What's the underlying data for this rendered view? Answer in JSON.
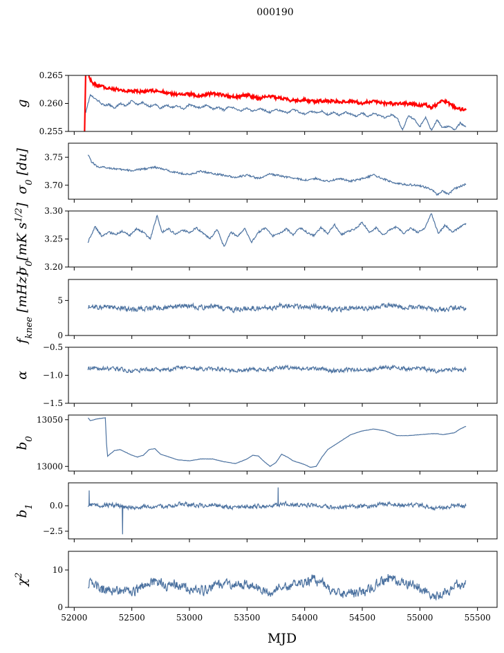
{
  "figure_title": "000190",
  "chart_data": [
    {
      "type": "line",
      "id": "g",
      "ylabel": "g",
      "ylabel_html": "g",
      "ylim": [
        0.255,
        0.265
      ],
      "yticks": [
        0.255,
        0.26,
        0.265
      ],
      "ytick_labels": [
        "0.255",
        "0.260",
        "0.265"
      ],
      "series": [
        {
          "name": "g",
          "color": "#4c72a0",
          "x": [
            52100,
            52140,
            52180,
            52220,
            52260,
            52300,
            52350,
            52400,
            52450,
            52500,
            52550,
            52600,
            52650,
            52700,
            52750,
            52800,
            52850,
            52900,
            52950,
            53000,
            53050,
            53100,
            53150,
            53200,
            53250,
            53300,
            53350,
            53400,
            53450,
            53500,
            53550,
            53600,
            53650,
            53700,
            53750,
            53800,
            53850,
            53900,
            53950,
            54000,
            54050,
            54100,
            54150,
            54200,
            54250,
            54300,
            54350,
            54400,
            54450,
            54500,
            54550,
            54600,
            54650,
            54700,
            54750,
            54800,
            54850,
            54900,
            54950,
            55000,
            55050,
            55100,
            55150,
            55200,
            55250,
            55300,
            55350,
            55400
          ],
          "y": [
            0.2585,
            0.2615,
            0.2608,
            0.2603,
            0.2596,
            0.2598,
            0.2592,
            0.26,
            0.2595,
            0.2605,
            0.2597,
            0.2602,
            0.2594,
            0.2599,
            0.2591,
            0.2597,
            0.2593,
            0.2596,
            0.259,
            0.2598,
            0.2594,
            0.2592,
            0.2597,
            0.259,
            0.2593,
            0.2588,
            0.2595,
            0.259,
            0.2587,
            0.2592,
            0.2585,
            0.2591,
            0.2588,
            0.2584,
            0.259,
            0.2586,
            0.2583,
            0.2589,
            0.2585,
            0.2581,
            0.2587,
            0.2583,
            0.2586,
            0.258,
            0.2584,
            0.2579,
            0.2585,
            0.2581,
            0.2577,
            0.2583,
            0.2576,
            0.2582,
            0.2578,
            0.2574,
            0.258,
            0.2575,
            0.2553,
            0.2578,
            0.2572,
            0.2558,
            0.2576,
            0.2552,
            0.257,
            0.2556,
            0.256,
            0.2552,
            0.2565,
            0.2558
          ]
        },
        {
          "name": "g_ref",
          "color": "#ff0000",
          "x": [
            52090,
            52100,
            52110,
            52120,
            52130,
            52150,
            52200,
            52250,
            52300,
            52400,
            52500,
            52600,
            52700,
            52800,
            52900,
            53000,
            53100,
            53200,
            53300,
            53400,
            53500,
            53600,
            53700,
            53800,
            53900,
            54000,
            54100,
            54200,
            54300,
            54400,
            54500,
            54600,
            54700,
            54800,
            54900,
            55000,
            55050,
            55100,
            55150,
            55200,
            55250,
            55300,
            55350,
            55400
          ],
          "y": [
            0.255,
            0.266,
            0.2652,
            0.266,
            0.2648,
            0.2638,
            0.2632,
            0.263,
            0.2627,
            0.2624,
            0.2622,
            0.2621,
            0.2623,
            0.2619,
            0.2615,
            0.2617,
            0.2613,
            0.2618,
            0.2614,
            0.2611,
            0.2615,
            0.2609,
            0.2612,
            0.2608,
            0.2605,
            0.2606,
            0.2603,
            0.2605,
            0.2602,
            0.2603,
            0.2601,
            0.2603,
            0.26,
            0.2599,
            0.26,
            0.2597,
            0.2598,
            0.2592,
            0.2599,
            0.2605,
            0.26,
            0.2594,
            0.259,
            0.2588
          ]
        }
      ]
    },
    {
      "type": "line",
      "id": "sigma0_du",
      "ylabel": "σ₀ [du]",
      "ylabel_html": "σ<sub>0</sub> [du]",
      "ylim": [
        3.675,
        3.775
      ],
      "yticks": [
        3.7,
        3.75
      ],
      "ytick_labels": [
        "3.70",
        "3.75"
      ],
      "series": [
        {
          "name": "sigma0_du",
          "color": "#4c72a0",
          "x": [
            52120,
            52150,
            52200,
            52300,
            52400,
            52500,
            52600,
            52700,
            52800,
            52900,
            53000,
            53100,
            53200,
            53300,
            53400,
            53500,
            53600,
            53700,
            53800,
            53900,
            54000,
            54100,
            54200,
            54300,
            54400,
            54500,
            54600,
            54700,
            54800,
            54900,
            55000,
            55100,
            55150,
            55200,
            55250,
            55300,
            55400
          ],
          "y": [
            3.756,
            3.742,
            3.733,
            3.731,
            3.728,
            3.726,
            3.729,
            3.732,
            3.727,
            3.722,
            3.719,
            3.725,
            3.721,
            3.718,
            3.714,
            3.718,
            3.712,
            3.72,
            3.716,
            3.713,
            3.709,
            3.712,
            3.707,
            3.712,
            3.707,
            3.712,
            3.718,
            3.71,
            3.703,
            3.701,
            3.699,
            3.693,
            3.683,
            3.69,
            3.684,
            3.694,
            3.702
          ]
        }
      ]
    },
    {
      "type": "line",
      "id": "sigma0_mK",
      "ylabel": "σ₀[mK s^1/2]",
      "ylabel_html": "σ<sub>0</sub>[mK s<sup>1/2</sup>]",
      "ylim": [
        3.2,
        3.3
      ],
      "yticks": [
        3.2,
        3.25,
        3.3
      ],
      "ytick_labels": [
        "3.20",
        "3.25",
        "3.30"
      ],
      "series": [
        {
          "name": "sigma0_mK",
          "color": "#4c72a0",
          "x": [
            52120,
            52180,
            52240,
            52300,
            52360,
            52420,
            52480,
            52540,
            52600,
            52660,
            52720,
            52760,
            52820,
            52880,
            52940,
            53000,
            53060,
            53120,
            53180,
            53240,
            53300,
            53360,
            53420,
            53480,
            53540,
            53600,
            53660,
            53720,
            53780,
            53840,
            53900,
            53960,
            54020,
            54080,
            54140,
            54200,
            54260,
            54320,
            54380,
            54440,
            54500,
            54560,
            54620,
            54680,
            54740,
            54800,
            54860,
            54920,
            54980,
            55040,
            55100,
            55160,
            55220,
            55280,
            55340,
            55400
          ],
          "y": [
            3.245,
            3.272,
            3.255,
            3.262,
            3.258,
            3.264,
            3.256,
            3.268,
            3.262,
            3.25,
            3.292,
            3.262,
            3.268,
            3.258,
            3.266,
            3.262,
            3.27,
            3.26,
            3.25,
            3.268,
            3.236,
            3.262,
            3.255,
            3.268,
            3.245,
            3.262,
            3.27,
            3.255,
            3.26,
            3.268,
            3.258,
            3.27,
            3.262,
            3.256,
            3.27,
            3.26,
            3.275,
            3.258,
            3.264,
            3.268,
            3.28,
            3.262,
            3.27,
            3.258,
            3.266,
            3.272,
            3.26,
            3.27,
            3.262,
            3.268,
            3.295,
            3.26,
            3.275,
            3.262,
            3.27,
            3.278
          ]
        }
      ]
    },
    {
      "type": "line",
      "id": "fknee",
      "ylabel": "f_knee [mHz]",
      "ylabel_html": "f<sub>knee</sub> [mHz]",
      "ylim": [
        0,
        8
      ],
      "yticks": [
        0,
        5
      ],
      "ytick_labels": [
        "0",
        "5"
      ],
      "series": [
        {
          "name": "fknee",
          "color": "#4c72a0",
          "base": 4.0,
          "amp": 0.6
        }
      ]
    },
    {
      "type": "line",
      "id": "alpha",
      "ylabel": "α",
      "ylabel_html": "α",
      "ylim": [
        -1.5,
        -0.5
      ],
      "yticks": [
        -1.5,
        -1.0,
        -0.5
      ],
      "ytick_labels": [
        "−1.5",
        "−1.0",
        "−0.5"
      ],
      "series": [
        {
          "name": "alpha",
          "color": "#4c72a0",
          "base": -0.89,
          "amp": 0.06
        }
      ]
    },
    {
      "type": "line",
      "id": "b0",
      "ylabel": "b₀",
      "ylabel_html": "b<sub>0</sub>",
      "ylim": [
        12995,
        13055
      ],
      "yticks": [
        13000,
        13050
      ],
      "ytick_labels": [
        "13000",
        "13050"
      ],
      "series": [
        {
          "name": "b0",
          "color": "#4c72a0",
          "x": [
            52120,
            52140,
            52200,
            52270,
            52280,
            52290,
            52300,
            52350,
            52400,
            52450,
            52500,
            52550,
            52600,
            52650,
            52700,
            52750,
            52800,
            52900,
            53000,
            53100,
            53200,
            53300,
            53400,
            53500,
            53550,
            53600,
            53650,
            53700,
            53750,
            53800,
            53850,
            53900,
            54000,
            54050,
            54100,
            54150,
            54200,
            54300,
            54400,
            54500,
            54600,
            54700,
            54800,
            54900,
            55000,
            55100,
            55150,
            55200,
            55300,
            55350,
            55400
          ],
          "y": [
            13052,
            13049,
            13051,
            13052,
            13025,
            13011,
            13012,
            13017,
            13018,
            13015,
            13012,
            13010,
            13012,
            13018,
            13019,
            13013,
            13011,
            13007,
            13006,
            13008,
            13008,
            13005,
            13003,
            13008,
            13012,
            13011,
            13005,
            13000,
            13004,
            13013,
            13010,
            13006,
            13002,
            12999,
            13000,
            13010,
            13018,
            13026,
            13034,
            13038,
            13040,
            13038,
            13033,
            13033,
            13034,
            13035,
            13035,
            13034,
            13036,
            13040,
            13043
          ]
        }
      ]
    },
    {
      "type": "line",
      "id": "b1",
      "ylabel": "b₁",
      "ylabel_html": "b<sub>1</sub>",
      "ylim": [
        -3.25,
        2.25
      ],
      "yticks": [
        -2.5,
        0.0
      ],
      "ytick_labels": [
        "−2.5",
        "0.0"
      ],
      "series": [
        {
          "name": "b1",
          "color": "#4c72a0",
          "base": 0.0,
          "amp": 0.35
        }
      ]
    },
    {
      "type": "line",
      "id": "chi2",
      "ylabel": "χ²",
      "ylabel_html": "χ<sup>2</sup>",
      "ylim": [
        0,
        15
      ],
      "yticks": [
        0,
        10
      ],
      "ytick_labels": [
        "0",
        "10"
      ],
      "series": [
        {
          "name": "chi2",
          "color": "#4c72a0",
          "base": 5.5,
          "amp": 2.0
        }
      ]
    }
  ],
  "xaxis": {
    "label": "MJD",
    "xlim": [
      51950,
      55670
    ],
    "ticks": [
      52000,
      52500,
      53000,
      53500,
      54000,
      54500,
      55000,
      55500
    ],
    "tick_labels": [
      "52000",
      "52500",
      "53000",
      "53500",
      "54000",
      "54500",
      "55000",
      "55500"
    ]
  }
}
